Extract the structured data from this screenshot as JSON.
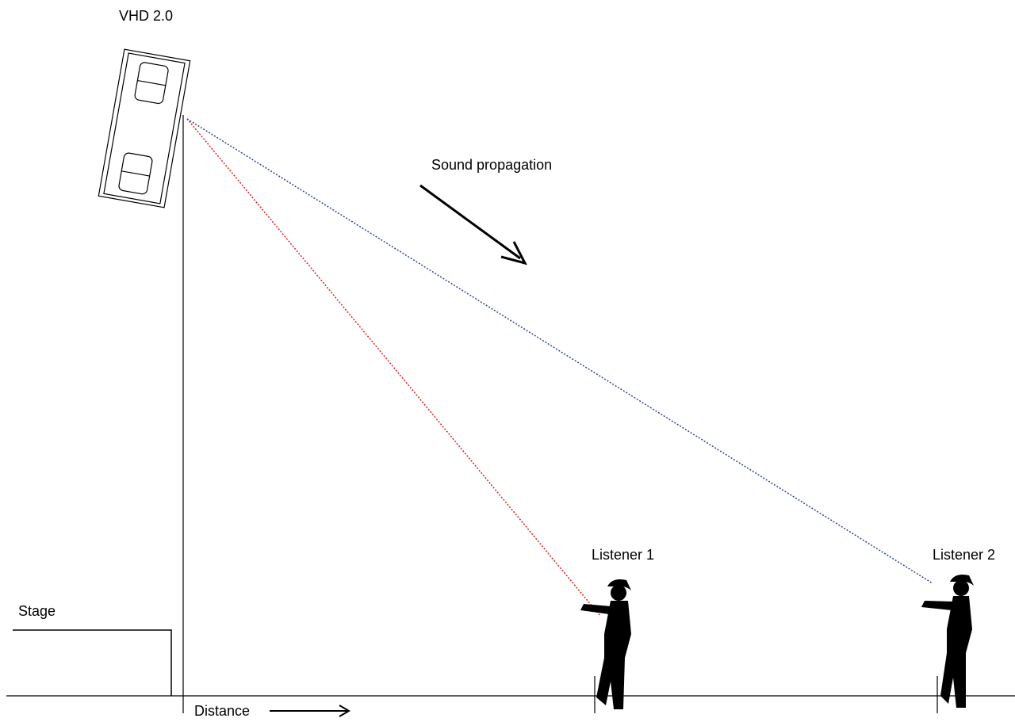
{
  "speaker": {
    "label": "VHD 2.0"
  },
  "annotations": {
    "propagation": "Sound propagation",
    "distance": "Distance",
    "stage": "Stage"
  },
  "listeners": [
    {
      "label": "Listener 1"
    },
    {
      "label": "Listener 2"
    }
  ]
}
